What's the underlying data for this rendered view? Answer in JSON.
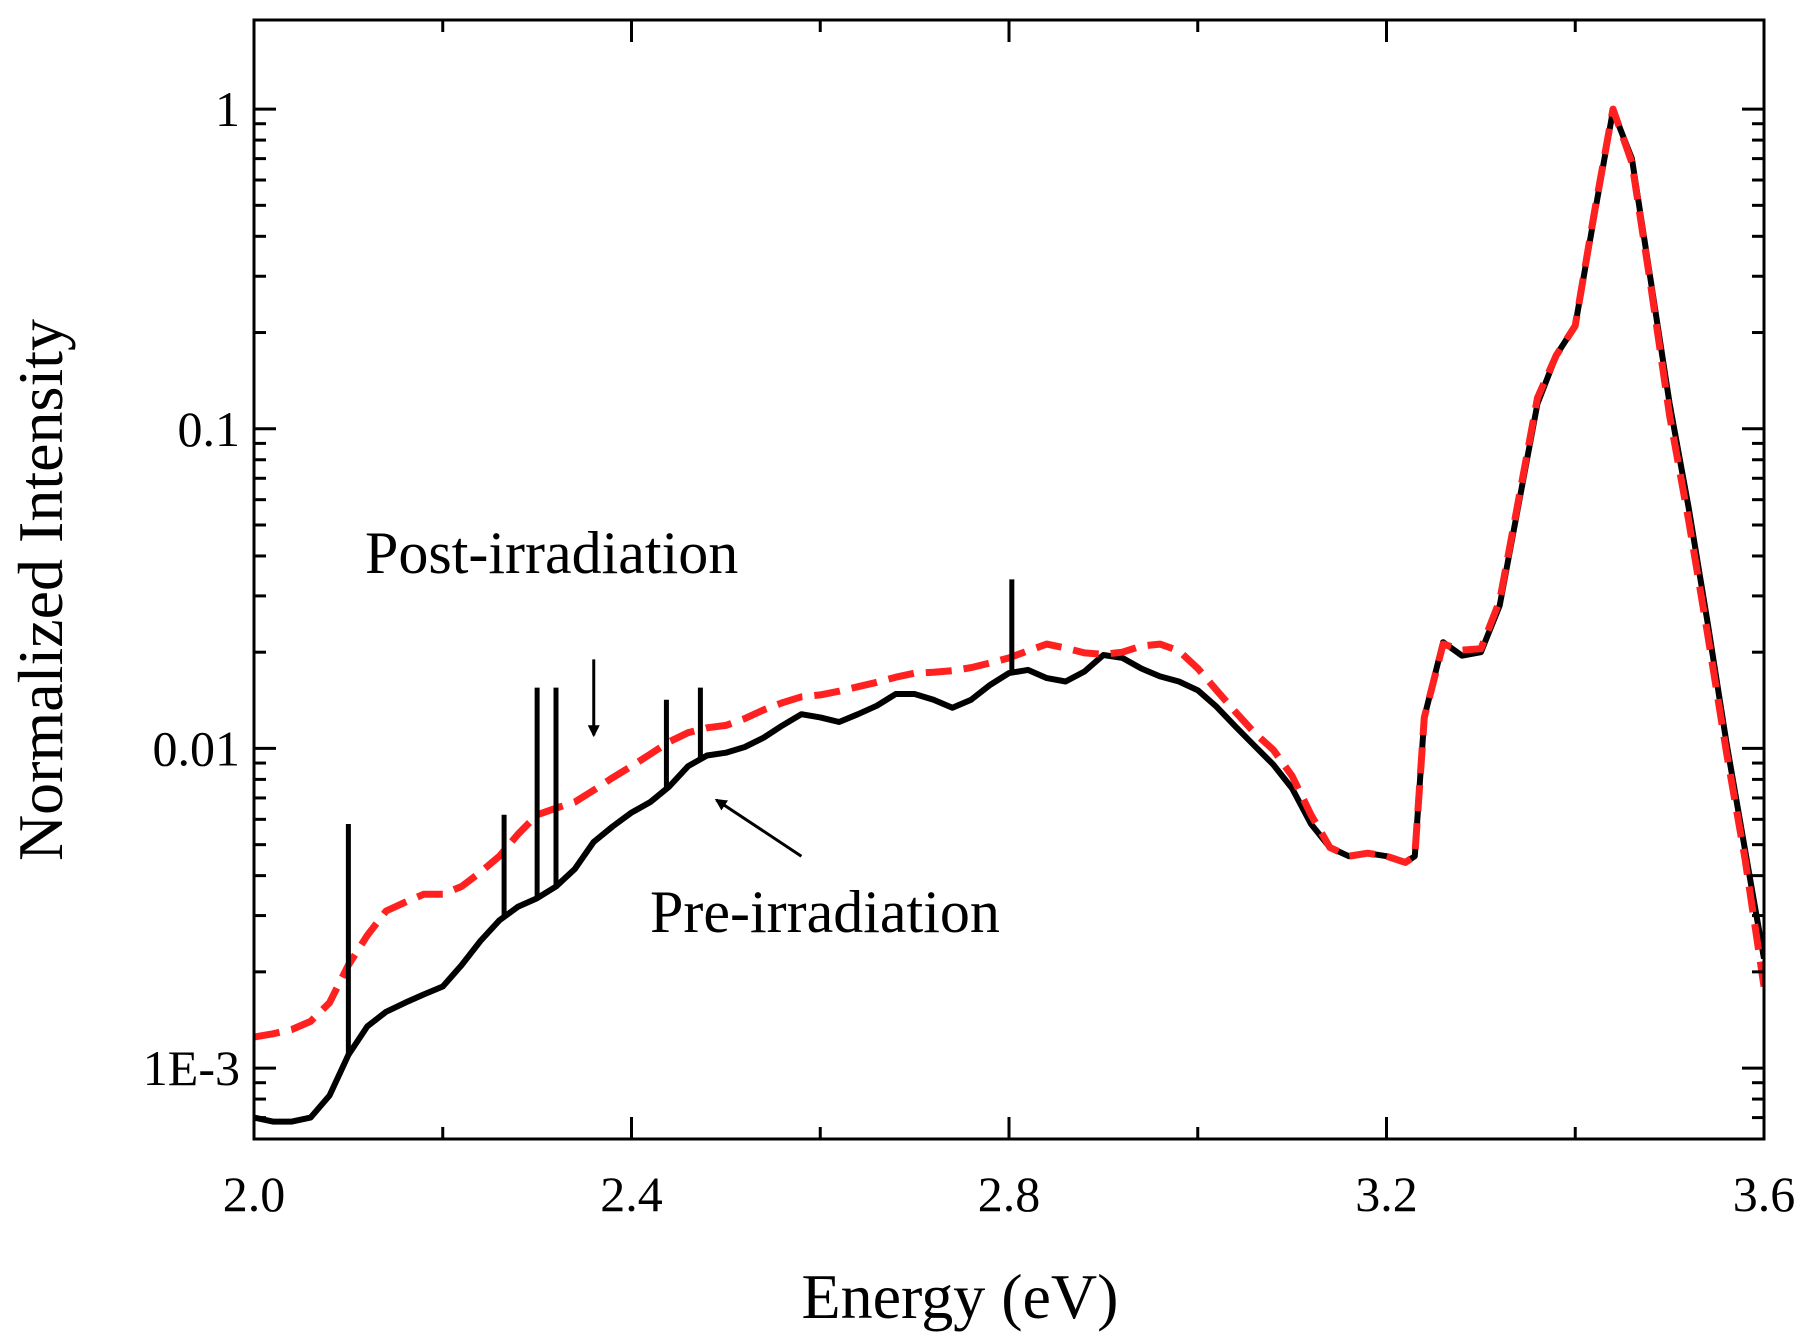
{
  "chart_data": {
    "type": "line",
    "title": "",
    "xlabel": "Energy (eV)",
    "ylabel": "Normalized Intensity",
    "xlim": [
      2.0,
      3.6
    ],
    "ylim": [
      0.0006,
      1.9
    ],
    "yscale": "log",
    "grid": false,
    "x_ticks": [
      2.0,
      2.4,
      2.8,
      3.2,
      3.6
    ],
    "x_tick_labels": [
      "2.0",
      "2.4",
      "2.8",
      "3.2",
      "3.6"
    ],
    "y_ticks": [
      0.001,
      0.01,
      0.1,
      1
    ],
    "y_tick_labels": [
      "1E-3",
      "0.01",
      "0.1",
      "1"
    ],
    "series": [
      {
        "name": "Pre-irradiation",
        "color": "#000000",
        "style": "solid",
        "x": [
          2.0,
          2.02,
          2.04,
          2.06,
          2.08,
          2.1,
          2.12,
          2.14,
          2.16,
          2.18,
          2.2,
          2.22,
          2.24,
          2.26,
          2.28,
          2.3,
          2.32,
          2.34,
          2.36,
          2.38,
          2.4,
          2.42,
          2.44,
          2.46,
          2.48,
          2.5,
          2.52,
          2.54,
          2.56,
          2.58,
          2.6,
          2.62,
          2.64,
          2.66,
          2.68,
          2.7,
          2.72,
          2.74,
          2.76,
          2.78,
          2.8,
          2.82,
          2.84,
          2.86,
          2.88,
          2.9,
          2.92,
          2.94,
          2.96,
          2.98,
          3.0,
          3.02,
          3.04,
          3.06,
          3.08,
          3.1,
          3.12,
          3.14,
          3.16,
          3.18,
          3.2,
          3.22,
          3.23,
          3.24,
          3.26,
          3.28,
          3.3,
          3.32,
          3.34,
          3.36,
          3.38,
          3.4,
          3.42,
          3.44,
          3.46,
          3.48,
          3.5,
          3.52,
          3.54,
          3.56,
          3.58,
          3.6
        ],
        "y": [
          0.0007,
          0.00068,
          0.00068,
          0.0007,
          0.00082,
          0.0011,
          0.00135,
          0.0015,
          0.0016,
          0.0017,
          0.0018,
          0.0021,
          0.0025,
          0.0029,
          0.0032,
          0.0034,
          0.0037,
          0.0042,
          0.0051,
          0.0057,
          0.0063,
          0.0068,
          0.0076,
          0.0088,
          0.0095,
          0.0097,
          0.0101,
          0.0108,
          0.0118,
          0.0128,
          0.0125,
          0.0121,
          0.0128,
          0.0136,
          0.0148,
          0.0148,
          0.0142,
          0.0134,
          0.0142,
          0.0158,
          0.0172,
          0.0176,
          0.0166,
          0.0162,
          0.0174,
          0.0196,
          0.0192,
          0.0178,
          0.0168,
          0.0162,
          0.0152,
          0.0135,
          0.0117,
          0.0102,
          0.0089,
          0.0075,
          0.0058,
          0.0049,
          0.0046,
          0.0047,
          0.0046,
          0.0044,
          0.0046,
          0.0125,
          0.0215,
          0.0195,
          0.02,
          0.028,
          0.058,
          0.12,
          0.17,
          0.21,
          0.46,
          0.99,
          0.7,
          0.29,
          0.12,
          0.057,
          0.025,
          0.0105,
          0.0048,
          0.0022
        ]
      },
      {
        "name": "Post-irradiation",
        "color": "#ff2020",
        "style": "dashed",
        "x": [
          2.0,
          2.02,
          2.04,
          2.06,
          2.08,
          2.1,
          2.12,
          2.14,
          2.16,
          2.18,
          2.2,
          2.22,
          2.24,
          2.26,
          2.28,
          2.3,
          2.32,
          2.34,
          2.36,
          2.38,
          2.4,
          2.42,
          2.44,
          2.46,
          2.48,
          2.5,
          2.52,
          2.54,
          2.56,
          2.58,
          2.6,
          2.62,
          2.64,
          2.66,
          2.68,
          2.7,
          2.72,
          2.74,
          2.76,
          2.78,
          2.8,
          2.82,
          2.84,
          2.86,
          2.88,
          2.9,
          2.92,
          2.94,
          2.96,
          2.98,
          3.0,
          3.02,
          3.04,
          3.06,
          3.08,
          3.1,
          3.12,
          3.14,
          3.16,
          3.18,
          3.2,
          3.22,
          3.23,
          3.24,
          3.26,
          3.28,
          3.3,
          3.32,
          3.34,
          3.36,
          3.38,
          3.4,
          3.42,
          3.44,
          3.46,
          3.48,
          3.5,
          3.52,
          3.54,
          3.56,
          3.58,
          3.6
        ],
        "y": [
          0.00125,
          0.00128,
          0.00132,
          0.0014,
          0.0016,
          0.0021,
          0.0026,
          0.0031,
          0.0033,
          0.0035,
          0.0035,
          0.0037,
          0.0041,
          0.0046,
          0.0054,
          0.0062,
          0.0065,
          0.0068,
          0.0074,
          0.0081,
          0.0088,
          0.0096,
          0.0105,
          0.0112,
          0.0116,
          0.0118,
          0.0124,
          0.0132,
          0.0139,
          0.0145,
          0.0147,
          0.0151,
          0.0156,
          0.0161,
          0.0167,
          0.0172,
          0.0173,
          0.0175,
          0.0179,
          0.0185,
          0.0192,
          0.0202,
          0.0212,
          0.0206,
          0.0199,
          0.0197,
          0.02,
          0.0209,
          0.0212,
          0.0202,
          0.0178,
          0.0152,
          0.013,
          0.0112,
          0.0099,
          0.0082,
          0.0062,
          0.0049,
          0.0046,
          0.0047,
          0.0046,
          0.0044,
          0.0046,
          0.0125,
          0.0212,
          0.0203,
          0.0205,
          0.029,
          0.06,
          0.125,
          0.17,
          0.21,
          0.47,
          1.0,
          0.68,
          0.28,
          0.11,
          0.052,
          0.023,
          0.0098,
          0.0045,
          0.0018
        ]
      }
    ],
    "spikes": {
      "series": "Pre-irradiation",
      "x": [
        2.1,
        2.265,
        2.3,
        2.32,
        2.437,
        2.473,
        2.803
      ],
      "y": [
        0.0058,
        0.0062,
        0.0155,
        0.0155,
        0.0142,
        0.0155,
        0.0338
      ]
    },
    "annotations": [
      {
        "text": "Post-irradiation",
        "arrow_from": [
          2.36,
          0.019
        ],
        "arrow_to": [
          2.36,
          0.011
        ]
      },
      {
        "text": "Pre-irradiation",
        "arrow_from": [
          2.58,
          0.0046
        ],
        "arrow_to": [
          2.49,
          0.0069
        ]
      }
    ]
  }
}
